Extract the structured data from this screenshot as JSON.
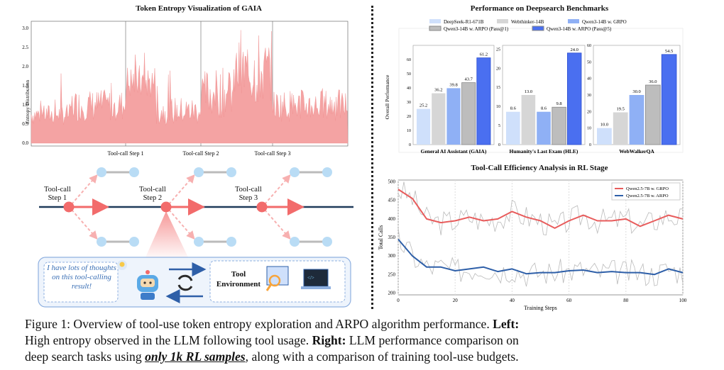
{
  "entropy_panel": {
    "title": "Token Entropy Visualization of GAIA",
    "ylabel": "Entropy Distribution",
    "yticks": [
      "0.0",
      "0.5",
      "1.0",
      "1.5",
      "2.0",
      "2.5",
      "3.0"
    ],
    "step_labels": [
      "Tool-call Step 1",
      "Tool-call Step 2",
      "Tool-call Step 3"
    ],
    "color": "#f4a3a3"
  },
  "diagram": {
    "steps": [
      "Tool-call\nStep 1",
      "Tool-call\nStep 2",
      "Tool-call\nStep 3"
    ],
    "thought": "I have lots of thoughts on this tool-calling result!",
    "env_title": "Tool Environment",
    "line_color": "#1f3a5a",
    "node_color": "#f26b6b",
    "branch_color": "#b9dcf5"
  },
  "chart_data": [
    {
      "type": "bar",
      "title": "Performance on Deepsearch Benchmarks",
      "ylabel": "Overall Performance",
      "legend": [
        "DeepSeek-R1-671B",
        "Webthinker-14B",
        "Qwen3-14B w. GRPO",
        "Qwen3-14B w. ARPO (Pass@1)",
        "Qwen3-14B w. ARPO (Pass@5)"
      ],
      "colors": [
        "#cfe0fb",
        "#d6d6d6",
        "#8fb0f5",
        "#bdbdbd",
        "#4a6ff0"
      ],
      "groups": [
        {
          "name": "General AI Assistant (GAIA)",
          "values": [
            25.2,
            36.2,
            39.8,
            43.7,
            61.2
          ],
          "ylim": [
            0,
            70
          ],
          "yticks": [
            "0",
            "10",
            "20",
            "30",
            "40",
            "50",
            "60"
          ]
        },
        {
          "name": "Humanity's Last Exam (HLE)",
          "values": [
            8.6,
            13.0,
            8.6,
            9.8,
            24.0
          ],
          "ylim": [
            0,
            26
          ],
          "yticks": [
            "0",
            "5",
            "10",
            "15",
            "20",
            "25"
          ]
        },
        {
          "name": "WebWalkerQA",
          "values": [
            10.0,
            19.5,
            30.0,
            36.0,
            54.5
          ],
          "ylim": [
            0,
            60
          ],
          "yticks": [
            "0",
            "10",
            "20",
            "30",
            "40",
            "50",
            "60"
          ]
        }
      ]
    },
    {
      "type": "line",
      "title": "Tool-Call Efficiency Analysis in RL Stage",
      "xlabel": "Training Steps",
      "ylabel": "Total Calls",
      "xlim": [
        0,
        100
      ],
      "ylim": [
        195,
        505
      ],
      "xticks": [
        "0",
        "20",
        "40",
        "60",
        "80",
        "100"
      ],
      "yticks": [
        "200",
        "250",
        "300",
        "350",
        "400",
        "450",
        "500"
      ],
      "series": [
        {
          "name": "Qwen2.5-7B w. GRPO",
          "color": "#e85c5c",
          "x": [
            0,
            5,
            10,
            15,
            20,
            25,
            30,
            35,
            40,
            45,
            50,
            55,
            60,
            65,
            70,
            75,
            80,
            85,
            90,
            95,
            100
          ],
          "y": [
            480,
            455,
            400,
            390,
            395,
            405,
            395,
            400,
            420,
            405,
            395,
            375,
            395,
            410,
            395,
            395,
            400,
            380,
            395,
            410,
            400
          ]
        },
        {
          "name": "Qwen2.5-7B w. ARPO",
          "color": "#2e5fa8",
          "x": [
            0,
            5,
            10,
            15,
            20,
            25,
            30,
            35,
            40,
            45,
            50,
            55,
            60,
            65,
            70,
            75,
            80,
            85,
            90,
            95,
            100
          ],
          "y": [
            345,
            300,
            270,
            270,
            260,
            265,
            270,
            258,
            265,
            252,
            255,
            255,
            260,
            262,
            255,
            258,
            255,
            255,
            250,
            265,
            255
          ]
        }
      ]
    }
  ],
  "caption": {
    "l1a": "Figure 1: Overview of tool-use token entropy exploration and ARPO algorithm performance.",
    "l1b": "Left:",
    "l2a": "High entropy observed in the LLM following tool usage.",
    "l2b": "Right:",
    "l2c": "LLM performance comparison on",
    "l3a": "deep search tasks using",
    "l3b": "only 1k RL samples",
    "l3c": ", along with a comparison of training tool-use budgets."
  }
}
